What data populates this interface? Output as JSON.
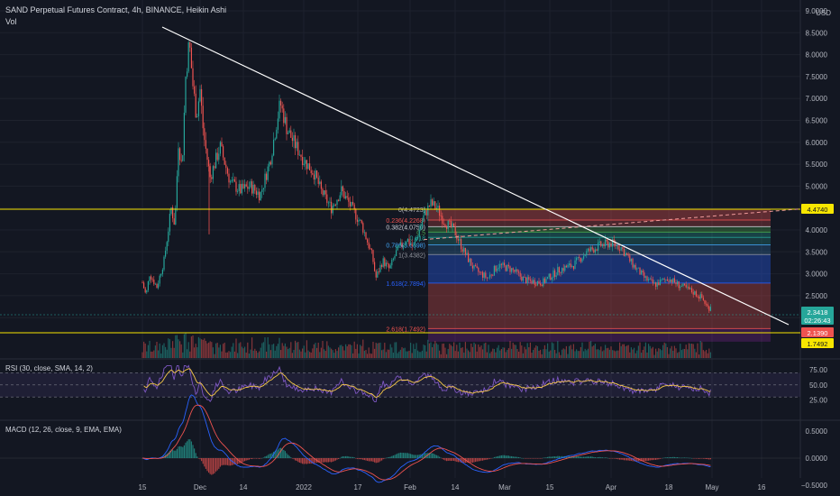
{
  "header": {
    "title": "SAND Perpetual Futures Contract, 4h, BINANCE, Heikin Ashi",
    "volume_label": "Vol"
  },
  "currency": "USD",
  "price_axis": {
    "ticks": [
      "9.0000",
      "8.5000",
      "8.0000",
      "7.5000",
      "7.0000",
      "6.5000",
      "6.0000",
      "5.5000",
      "5.0000",
      "4.5000",
      "4.0000",
      "3.5000",
      "3.0000",
      "2.5000",
      "2.0000"
    ],
    "badges": [
      {
        "text": "4.4740",
        "fill": "#f7e600",
        "color": "#131722"
      },
      {
        "text": "2.3418",
        "fill": "#26a69a",
        "color": "#ffffff"
      },
      {
        "text": "02:26:43",
        "fill": "#26a69a",
        "color": "#ffffff"
      },
      {
        "text": "2.1390",
        "fill": "#ef5350",
        "color": "#ffffff"
      },
      {
        "text": "1.7492",
        "fill": "#f7e600",
        "color": "#131722"
      }
    ]
  },
  "time_axis": {
    "labels": [
      "15",
      "Dec",
      "14",
      "2022",
      "17",
      "Feb",
      "14",
      "Mar",
      "15",
      "Apr",
      "18",
      "May",
      "16"
    ]
  },
  "fibonacci": {
    "levels": [
      {
        "ratio": "0",
        "price": "4.4723",
        "label": "0(4.4723)",
        "color": "#b2b5be"
      },
      {
        "ratio": "0.236",
        "price": "4.2268",
        "label": "0.236(4.2268)",
        "color": "#ef5350"
      },
      {
        "ratio": "0.382",
        "price": "4.0750",
        "label": "0.382(4.0750)",
        "color": "#d1d4dc"
      },
      {
        "ratio": "0.5",
        "price": "",
        "label": "0.5",
        "color": "#4caf50"
      },
      {
        "ratio": "0.618",
        "price": "",
        "label": "0.618",
        "color": "#26a69a"
      },
      {
        "ratio": "0.786",
        "price": "3.6598",
        "label": "0.786(3.6598)",
        "color": "#42a5f5"
      },
      {
        "ratio": "1",
        "price": "3.4382",
        "label": "1(3.4382)",
        "color": "#9598a1"
      },
      {
        "ratio": "1.618",
        "price": "2.7894",
        "label": "1.618(2.7894)",
        "color": "#2962ff"
      },
      {
        "ratio": "2.618",
        "price": "1.7492",
        "label": "2.618(1.7492)",
        "color": "#ef5350"
      }
    ]
  },
  "rsi": {
    "label": "RSI (30, close, SMA, 14, 2)",
    "ticks": [
      "75.00",
      "50.00",
      "25.00"
    ]
  },
  "macd": {
    "label": "MACD (12, 26, close, 9, EMA, EMA)",
    "ticks": [
      "0.5000",
      "0.0000",
      "−0.5000"
    ]
  },
  "colors": {
    "up": "#26a69a",
    "down": "#ef5350",
    "trendline": "#ffffff",
    "horizontal_level": "#f7e600",
    "rsi_line": "#7e57c2",
    "rsi_ma": "#f7c948",
    "macd_line": "#2962ff",
    "signal_line": "#ef5350"
  },
  "chart_data": {
    "type": "candlestick",
    "title": "SAND Perpetual Futures Contract, 4h, BINANCE, Heikin Ashi",
    "ylim": [
      1.5,
      9.0
    ],
    "x_labels": [
      "15",
      "Dec",
      "14",
      "2022",
      "17",
      "Feb",
      "14",
      "Mar",
      "15",
      "Apr",
      "18",
      "May",
      "16"
    ],
    "close_path": [
      {
        "x": "Nov 15",
        "y": 2.8
      },
      {
        "x": "Nov 16",
        "y": 2.5
      },
      {
        "x": "Nov 17",
        "y": 3.0
      },
      {
        "x": "Nov 19",
        "y": 2.7
      },
      {
        "x": "Nov 21",
        "y": 3.3
      },
      {
        "x": "Nov 23",
        "y": 4.5
      },
      {
        "x": "Nov 24",
        "y": 4.1
      },
      {
        "x": "Nov 25",
        "y": 6.0
      },
      {
        "x": "Nov 26",
        "y": 5.4
      },
      {
        "x": "Nov 27",
        "y": 7.5
      },
      {
        "x": "Nov 28",
        "y": 8.3
      },
      {
        "x": "Nov 29",
        "y": 7.3
      },
      {
        "x": "Nov 30",
        "y": 6.6
      },
      {
        "x": "Dec 1",
        "y": 7.2
      },
      {
        "x": "Dec 2",
        "y": 6.2
      },
      {
        "x": "Dec 4",
        "y": 5.2
      },
      {
        "x": "Dec 7",
        "y": 5.9
      },
      {
        "x": "Dec 10",
        "y": 5.1
      },
      {
        "x": "Dec 13",
        "y": 4.9
      },
      {
        "x": "Dec 16",
        "y": 5.0
      },
      {
        "x": "Dec 19",
        "y": 4.8
      },
      {
        "x": "Dec 22",
        "y": 5.6
      },
      {
        "x": "Dec 24",
        "y": 6.5
      },
      {
        "x": "Dec 25",
        "y": 6.9
      },
      {
        "x": "Dec 27",
        "y": 6.3
      },
      {
        "x": "Dec 29",
        "y": 6.0
      },
      {
        "x": "Jan 1",
        "y": 5.6
      },
      {
        "x": "Jan 4",
        "y": 5.3
      },
      {
        "x": "Jan 6",
        "y": 4.9
      },
      {
        "x": "Jan 9",
        "y": 4.5
      },
      {
        "x": "Jan 12",
        "y": 4.9
      },
      {
        "x": "Jan 15",
        "y": 4.5
      },
      {
        "x": "Jan 18",
        "y": 4.1
      },
      {
        "x": "Jan 21",
        "y": 3.4
      },
      {
        "x": "Jan 22",
        "y": 2.9
      },
      {
        "x": "Jan 24",
        "y": 3.3
      },
      {
        "x": "Jan 26",
        "y": 3.1
      },
      {
        "x": "Jan 28",
        "y": 3.5
      },
      {
        "x": "Jan 31",
        "y": 3.8
      },
      {
        "x": "Feb 2",
        "y": 3.6
      },
      {
        "x": "Feb 5",
        "y": 4.3
      },
      {
        "x": "Feb 7",
        "y": 4.6
      },
      {
        "x": "Feb 9",
        "y": 4.5
      },
      {
        "x": "Feb 11",
        "y": 4.2
      },
      {
        "x": "Feb 14",
        "y": 4.0
      },
      {
        "x": "Feb 17",
        "y": 3.5
      },
      {
        "x": "Feb 20",
        "y": 3.1
      },
      {
        "x": "Feb 24",
        "y": 2.9
      },
      {
        "x": "Feb 27",
        "y": 3.2
      },
      {
        "x": "Mar 3",
        "y": 3.1
      },
      {
        "x": "Mar 7",
        "y": 2.85
      },
      {
        "x": "Mar 12",
        "y": 2.8
      },
      {
        "x": "Mar 17",
        "y": 3.1
      },
      {
        "x": "Mar 21",
        "y": 3.2
      },
      {
        "x": "Mar 25",
        "y": 3.5
      },
      {
        "x": "Mar 29",
        "y": 3.65
      },
      {
        "x": "Apr 1",
        "y": 3.7
      },
      {
        "x": "Apr 4",
        "y": 3.6
      },
      {
        "x": "Apr 7",
        "y": 3.25
      },
      {
        "x": "Apr 11",
        "y": 2.9
      },
      {
        "x": "Apr 14",
        "y": 2.75
      },
      {
        "x": "Apr 18",
        "y": 2.9
      },
      {
        "x": "Apr 21",
        "y": 2.75
      },
      {
        "x": "Apr 25",
        "y": 2.6
      },
      {
        "x": "Apr 28",
        "y": 2.45
      },
      {
        "x": "Apr 30",
        "y": 2.2
      },
      {
        "x": "May 1",
        "y": 2.34
      }
    ]
  }
}
